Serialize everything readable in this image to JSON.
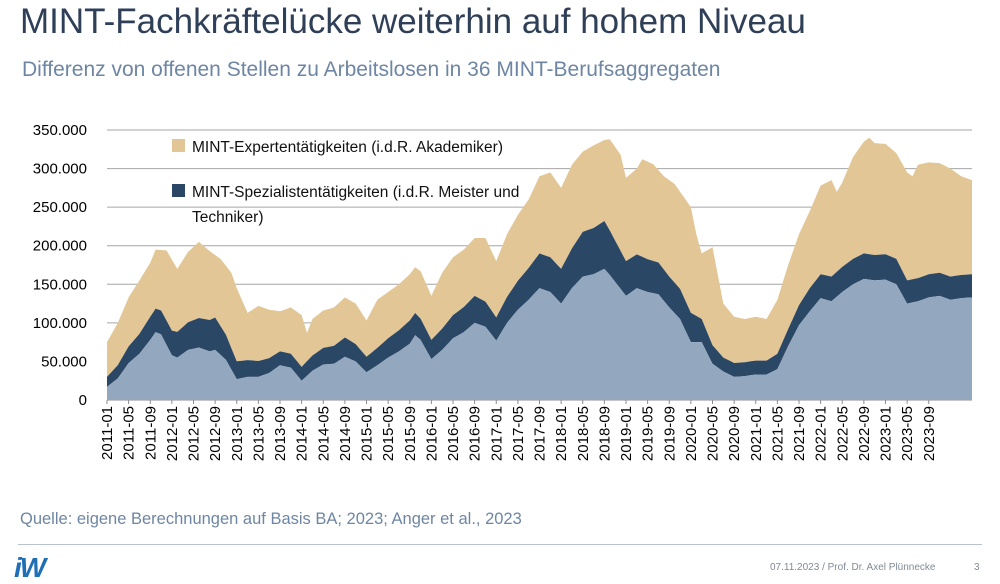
{
  "title": "MINT-Fachkräftelücke weiterhin auf hohem Niveau",
  "subtitle": "Differenz von offenen Stellen zu Arbeitslosen in 36 MINT-Berufsaggregaten",
  "source": "Quelle: eigene Berechnungen auf Basis BA; 2023; Anger et al., 2023",
  "footer": {
    "text": "07.11.2023 / Prof. Dr. Axel Plünnecke",
    "page": "3",
    "logo": "iW"
  },
  "colors": {
    "experten": "#e2c696",
    "spezialisten": "#2b4766",
    "base": "#93a8bf",
    "grid": "#a6a6a6"
  },
  "chart_data": {
    "type": "area",
    "stacked": true,
    "title": "",
    "xlabel": "",
    "ylabel": "",
    "ylim": [
      0,
      350000
    ],
    "yticks": [
      0,
      50000,
      100000,
      150000,
      200000,
      250000,
      300000,
      350000
    ],
    "ytick_labels": [
      "0",
      "50.000",
      "100.000",
      "150.000",
      "200.000",
      "250.000",
      "300.000",
      "350.000"
    ],
    "x_start": "2011-01",
    "x_end": "2023-09",
    "xtick_labels": [
      "2011-01",
      "2011-05",
      "2011-09",
      "2012-01",
      "2012-05",
      "2012-09",
      "2013-01",
      "2013-05",
      "2013-09",
      "2014-01",
      "2014-05",
      "2014-09",
      "2015-01",
      "2015-05",
      "2015-09",
      "2016-01",
      "2016-05",
      "2016-09",
      "2017-01",
      "2017-05",
      "2017-09",
      "2018-01",
      "2018-05",
      "2018-09",
      "2019-01",
      "2019-05",
      "2019-09",
      "2020-01",
      "2020-05",
      "2020-09",
      "2021-01",
      "2021-05",
      "2021-09",
      "2022-01",
      "2022-05",
      "2022-09",
      "2023-01",
      "2023-05",
      "2023-09"
    ],
    "legend": [
      {
        "label": "MINT-Expertentätigkeiten (i.d.R. Akademiker)",
        "color": "#e2c696"
      },
      {
        "label_line1": "MINT-Spezialistentätigkeiten (i.d.R. Meister und",
        "label_line2": "Techniker)",
        "color": "#2b4766"
      }
    ],
    "legend_position": "top-left",
    "series_anchors": {
      "base_note": "Light blue-grey base area (bottom layer); anchor values are [month_index, value]",
      "base": [
        [
          0,
          17000
        ],
        [
          2,
          28000
        ],
        [
          4,
          48000
        ],
        [
          6,
          60000
        ],
        [
          8,
          78000
        ],
        [
          9,
          88000
        ],
        [
          10,
          85000
        ],
        [
          12,
          58000
        ],
        [
          13,
          55000
        ],
        [
          15,
          65000
        ],
        [
          17,
          68000
        ],
        [
          19,
          63000
        ],
        [
          20,
          65000
        ],
        [
          22,
          52000
        ],
        [
          24,
          27000
        ],
        [
          26,
          30000
        ],
        [
          28,
          30000
        ],
        [
          30,
          35000
        ],
        [
          32,
          45000
        ],
        [
          34,
          42000
        ],
        [
          36,
          25000
        ],
        [
          38,
          38000
        ],
        [
          40,
          46000
        ],
        [
          42,
          47000
        ],
        [
          44,
          56000
        ],
        [
          46,
          50000
        ],
        [
          48,
          36000
        ],
        [
          50,
          45000
        ],
        [
          52,
          55000
        ],
        [
          54,
          63000
        ],
        [
          56,
          73000
        ],
        [
          57,
          84000
        ],
        [
          58,
          78000
        ],
        [
          60,
          53000
        ],
        [
          62,
          65000
        ],
        [
          64,
          80000
        ],
        [
          66,
          88000
        ],
        [
          68,
          100000
        ],
        [
          70,
          95000
        ],
        [
          72,
          77000
        ],
        [
          74,
          100000
        ],
        [
          76,
          117000
        ],
        [
          78,
          130000
        ],
        [
          80,
          145000
        ],
        [
          82,
          140000
        ],
        [
          84,
          125000
        ],
        [
          86,
          145000
        ],
        [
          88,
          160000
        ],
        [
          90,
          163000
        ],
        [
          92,
          170000
        ],
        [
          93,
          162000
        ],
        [
          96,
          135000
        ],
        [
          98,
          145000
        ],
        [
          100,
          140000
        ],
        [
          102,
          137000
        ],
        [
          104,
          120000
        ],
        [
          106,
          105000
        ],
        [
          108,
          75000
        ],
        [
          110,
          75000
        ],
        [
          112,
          47000
        ],
        [
          114,
          37000
        ],
        [
          116,
          30000
        ],
        [
          118,
          31000
        ],
        [
          120,
          33000
        ],
        [
          122,
          33000
        ],
        [
          124,
          40000
        ],
        [
          126,
          70000
        ],
        [
          128,
          97000
        ],
        [
          130,
          115000
        ],
        [
          132,
          132000
        ],
        [
          134,
          128000
        ],
        [
          136,
          140000
        ],
        [
          138,
          150000
        ],
        [
          140,
          157000
        ],
        [
          142,
          155000
        ],
        [
          144,
          156000
        ],
        [
          146,
          150000
        ],
        [
          148,
          125000
        ],
        [
          150,
          128000
        ],
        [
          152,
          133000
        ],
        [
          154,
          135000
        ],
        [
          156,
          130000
        ],
        [
          158,
          132000
        ],
        [
          160,
          133000
        ]
      ],
      "spezialisten_note": "Dark blue layer thickness",
      "spezialisten": [
        [
          0,
          13000
        ],
        [
          8,
          30000
        ],
        [
          12,
          32000
        ],
        [
          20,
          42000
        ],
        [
          24,
          23000
        ],
        [
          32,
          18000
        ],
        [
          36,
          18000
        ],
        [
          44,
          25000
        ],
        [
          48,
          20000
        ],
        [
          56,
          30000
        ],
        [
          60,
          25000
        ],
        [
          68,
          35000
        ],
        [
          72,
          30000
        ],
        [
          80,
          45000
        ],
        [
          84,
          45000
        ],
        [
          88,
          58000
        ],
        [
          92,
          62000
        ],
        [
          96,
          45000
        ],
        [
          104,
          40000
        ],
        [
          108,
          38000
        ],
        [
          110,
          30000
        ],
        [
          114,
          18000
        ],
        [
          118,
          18000
        ],
        [
          122,
          18000
        ],
        [
          126,
          22000
        ],
        [
          130,
          30000
        ],
        [
          134,
          32000
        ],
        [
          138,
          33000
        ],
        [
          142,
          33000
        ],
        [
          146,
          33000
        ],
        [
          148,
          30000
        ],
        [
          152,
          30000
        ],
        [
          156,
          30000
        ],
        [
          160,
          30000
        ]
      ],
      "total_note": "Top of the stacked chart (base + spezialisten + experten)",
      "total": [
        [
          0,
          75000
        ],
        [
          2,
          100000
        ],
        [
          4,
          133000
        ],
        [
          6,
          155000
        ],
        [
          8,
          178000
        ],
        [
          9,
          195000
        ],
        [
          11,
          194000
        ],
        [
          13,
          170000
        ],
        [
          15,
          192000
        ],
        [
          17,
          205000
        ],
        [
          19,
          193000
        ],
        [
          21,
          183000
        ],
        [
          23,
          165000
        ],
        [
          24,
          145000
        ],
        [
          26,
          113000
        ],
        [
          28,
          122000
        ],
        [
          30,
          117000
        ],
        [
          32,
          115000
        ],
        [
          34,
          120000
        ],
        [
          36,
          110000
        ],
        [
          37,
          87000
        ],
        [
          38,
          105000
        ],
        [
          40,
          116000
        ],
        [
          42,
          120000
        ],
        [
          44,
          133000
        ],
        [
          46,
          125000
        ],
        [
          48,
          103000
        ],
        [
          50,
          130000
        ],
        [
          52,
          140000
        ],
        [
          54,
          150000
        ],
        [
          56,
          163000
        ],
        [
          57,
          172000
        ],
        [
          58,
          167000
        ],
        [
          60,
          135000
        ],
        [
          62,
          165000
        ],
        [
          64,
          185000
        ],
        [
          66,
          195000
        ],
        [
          68,
          210000
        ],
        [
          70,
          210000
        ],
        [
          72,
          180000
        ],
        [
          74,
          215000
        ],
        [
          76,
          240000
        ],
        [
          78,
          260000
        ],
        [
          80,
          290000
        ],
        [
          82,
          295000
        ],
        [
          84,
          275000
        ],
        [
          86,
          305000
        ],
        [
          88,
          322000
        ],
        [
          90,
          330000
        ],
        [
          92,
          337000
        ],
        [
          93,
          338000
        ],
        [
          95,
          318000
        ],
        [
          96,
          288000
        ],
        [
          98,
          300000
        ],
        [
          99,
          312000
        ],
        [
          101,
          306000
        ],
        [
          103,
          290000
        ],
        [
          105,
          280000
        ],
        [
          106,
          270000
        ],
        [
          108,
          250000
        ],
        [
          109,
          215000
        ],
        [
          110,
          190000
        ],
        [
          112,
          198000
        ],
        [
          114,
          125000
        ],
        [
          116,
          108000
        ],
        [
          118,
          105000
        ],
        [
          120,
          108000
        ],
        [
          122,
          105000
        ],
        [
          124,
          130000
        ],
        [
          126,
          175000
        ],
        [
          128,
          215000
        ],
        [
          130,
          245000
        ],
        [
          132,
          278000
        ],
        [
          134,
          285000
        ],
        [
          135,
          270000
        ],
        [
          136,
          282000
        ],
        [
          138,
          315000
        ],
        [
          140,
          335000
        ],
        [
          141,
          340000
        ],
        [
          142,
          333000
        ],
        [
          144,
          332000
        ],
        [
          146,
          320000
        ],
        [
          148,
          295000
        ],
        [
          149,
          290000
        ],
        [
          150,
          305000
        ],
        [
          152,
          308000
        ],
        [
          154,
          307000
        ],
        [
          156,
          300000
        ],
        [
          158,
          290000
        ],
        [
          160,
          285000
        ]
      ]
    }
  }
}
